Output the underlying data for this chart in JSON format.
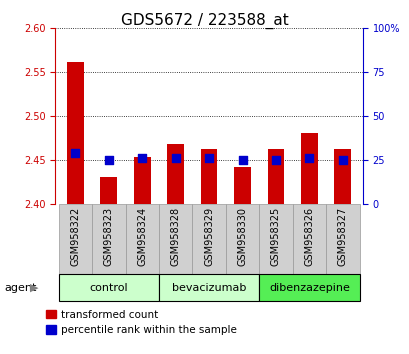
{
  "title": "GDS5672 / 223588_at",
  "samples": [
    "GSM958322",
    "GSM958323",
    "GSM958324",
    "GSM958328",
    "GSM958329",
    "GSM958330",
    "GSM958325",
    "GSM958326",
    "GSM958327"
  ],
  "transformed_counts": [
    2.562,
    2.43,
    2.453,
    2.468,
    2.462,
    2.442,
    2.462,
    2.48,
    2.462
  ],
  "percentile_ranks": [
    29,
    25,
    26,
    26,
    26,
    25,
    25,
    26,
    25
  ],
  "baseline": 2.4,
  "ylim_left": [
    2.4,
    2.6
  ],
  "ylim_right": [
    0,
    100
  ],
  "yticks_left": [
    2.4,
    2.45,
    2.5,
    2.55,
    2.6
  ],
  "yticks_right": [
    0,
    25,
    50,
    75,
    100
  ],
  "groups": [
    {
      "label": "control",
      "indices": [
        0,
        1,
        2
      ],
      "color": "#ccffcc"
    },
    {
      "label": "bevacizumab",
      "indices": [
        3,
        4,
        5
      ],
      "color": "#ccffcc"
    },
    {
      "label": "dibenzazepine",
      "indices": [
        6,
        7,
        8
      ],
      "color": "#55ee55"
    }
  ],
  "bar_color": "#cc0000",
  "dot_color": "#0000cc",
  "bar_width": 0.5,
  "dot_size": 28,
  "background_color": "#ffffff",
  "tick_label_fontsize": 7,
  "axis_label_fontsize": 8,
  "title_fontsize": 11,
  "legend_fontsize": 7.5,
  "group_label_fontsize": 8,
  "sample_bg_color": "#d0d0d0",
  "left_axis_color": "#cc0000",
  "right_axis_color": "#0000cc",
  "agent_label": "agent",
  "legend_items": [
    "transformed count",
    "percentile rank within the sample"
  ]
}
